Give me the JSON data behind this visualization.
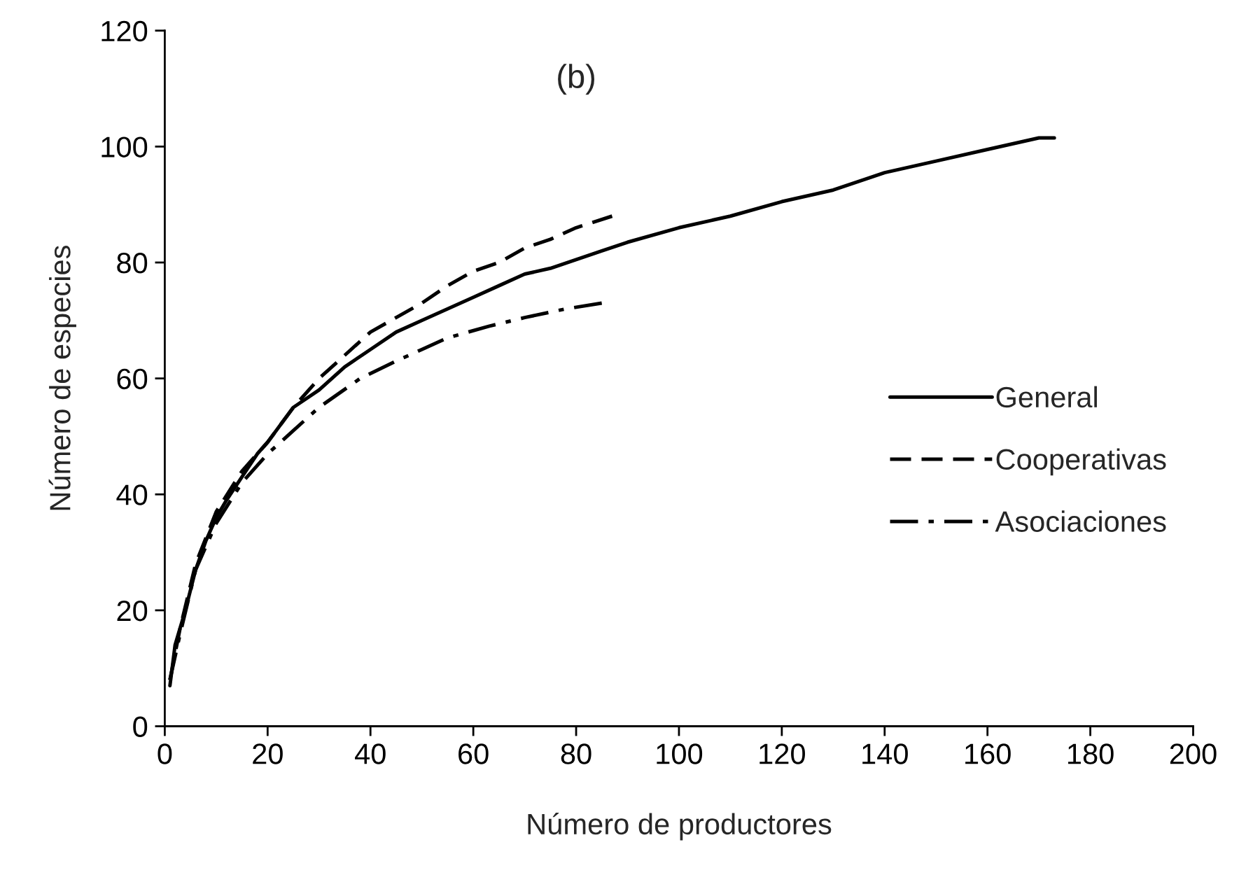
{
  "chart_data": {
    "type": "line",
    "title": "(b)",
    "xlabel": "Número de productores",
    "ylabel": "Número de especies",
    "xlim": [
      0,
      200
    ],
    "xticks": [
      0,
      20,
      40,
      60,
      80,
      100,
      120,
      140,
      160,
      180,
      200
    ],
    "ylim": [
      0,
      120
    ],
    "yticks": [
      0,
      20,
      40,
      60,
      80,
      100,
      120
    ],
    "grid": false,
    "legend": "right",
    "marker": "none",
    "series": [
      {
        "name": "General",
        "color": "#000000",
        "line_style": "solid",
        "x": [
          1,
          2,
          4,
          6,
          8,
          10,
          12,
          15,
          18,
          20,
          25,
          30,
          35,
          40,
          45,
          50,
          55,
          60,
          65,
          70,
          75,
          80,
          85,
          90,
          100,
          110,
          120,
          130,
          140,
          150,
          160,
          170,
          173
        ],
        "values": [
          7,
          14,
          20,
          27,
          32,
          36,
          39,
          43,
          47,
          49,
          55,
          58,
          62,
          65,
          68,
          70,
          72,
          74,
          76,
          78,
          79,
          80.5,
          82,
          83.5,
          86,
          88,
          90.5,
          92.5,
          95.5,
          97.5,
          99.5,
          101.5,
          101.5
        ]
      },
      {
        "name": "Cooperativas",
        "color": "#000000",
        "line_style": "dashed",
        "x": [
          1,
          3,
          6,
          10,
          15,
          20,
          25,
          30,
          35,
          40,
          45,
          50,
          55,
          60,
          65,
          70,
          75,
          80,
          87
        ],
        "values": [
          8,
          17,
          28,
          37,
          44,
          49,
          55,
          60,
          64,
          68,
          70.5,
          73,
          76,
          78.5,
          80,
          82.5,
          84,
          86,
          88
        ]
      },
      {
        "name": "Asociaciones",
        "color": "#000000",
        "line_style": "dashdot",
        "x": [
          1,
          3,
          6,
          10,
          15,
          20,
          25,
          30,
          38,
          45,
          50,
          55,
          63,
          70,
          78,
          85
        ],
        "values": [
          8,
          16,
          27,
          35,
          42,
          47,
          51,
          55,
          60,
          63,
          65,
          67,
          69,
          70.5,
          72,
          73
        ]
      }
    ]
  }
}
